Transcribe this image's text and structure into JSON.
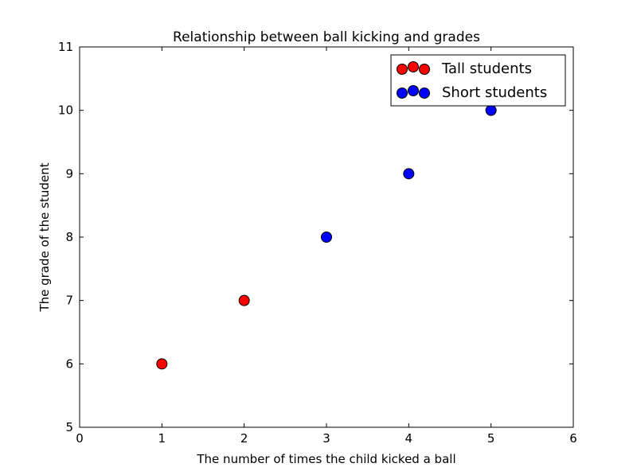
{
  "chart_data": {
    "type": "scatter",
    "title": "Relationship between ball kicking and grades",
    "xlabel": "The number of times the child kicked a ball",
    "ylabel": "The grade of the student",
    "xlim": [
      0,
      6
    ],
    "ylim": [
      5,
      11
    ],
    "xticks": [
      "0",
      "1",
      "2",
      "3",
      "4",
      "5",
      "6"
    ],
    "yticks": [
      "5",
      "6",
      "7",
      "8",
      "9",
      "10",
      "11"
    ],
    "grid": false,
    "legend_position": "top-right",
    "series": [
      {
        "name": "Tall students",
        "color": "#ff0000",
        "x": [
          1,
          2
        ],
        "y": [
          6,
          7
        ]
      },
      {
        "name": "Short students",
        "color": "#0000ff",
        "x": [
          3,
          4,
          5
        ],
        "y": [
          8,
          9,
          10
        ]
      }
    ]
  }
}
